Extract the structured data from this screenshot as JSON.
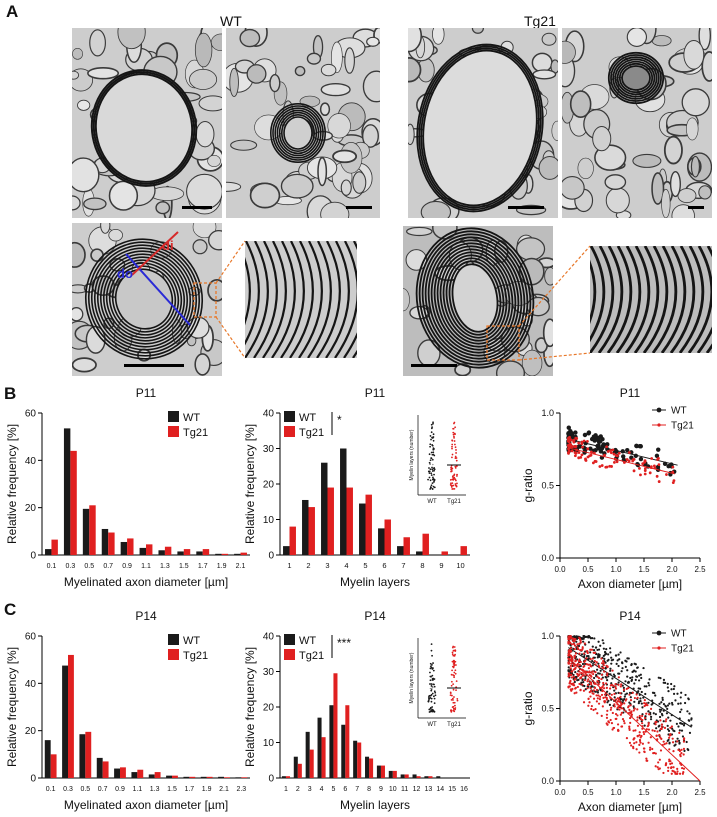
{
  "panel_labels": {
    "a": "A",
    "b": "B",
    "c": "C"
  },
  "group_labels": {
    "wt": "WT",
    "tg": "Tg21"
  },
  "micro_labels": {
    "di": "di",
    "do": "do"
  },
  "colors": {
    "wt": "#1a1a1a",
    "tg": "#e02020",
    "di_line": "#d62a2a",
    "do_line": "#2a2ad6",
    "zoom": "#e8782a"
  },
  "icons": [
    "em-micrograph",
    "scale-bar",
    "zoom-box"
  ],
  "chart_data": [
    {
      "id": "b1",
      "type": "bar",
      "title": "P11",
      "xlabel": "Myelinated axon diameter [µm]",
      "ylabel": "Relative frequency [%]",
      "ylim": [
        0,
        60
      ],
      "yticks": [
        0,
        20,
        40,
        60
      ],
      "categories": [
        "0.1",
        "0.3",
        "0.5",
        "0.7",
        "0.9",
        "1.1",
        "1.3",
        "1.5",
        "1.7",
        "1.9",
        "2.1"
      ],
      "series": [
        {
          "name": "WT",
          "values": [
            2.5,
            53.5,
            19.5,
            11,
            5.5,
            3,
            2,
            1.5,
            1.5,
            0.5,
            0.5
          ]
        },
        {
          "name": "Tg21",
          "values": [
            6.5,
            44,
            21,
            9.5,
            7,
            4.5,
            3.5,
            2.5,
            2.5,
            0.5,
            1
          ]
        }
      ],
      "legend": "top-right"
    },
    {
      "id": "b2",
      "type": "bar",
      "title": "P11",
      "xlabel": "Myelin layers",
      "ylabel": "Relative frequency [%]",
      "ylim": [
        0,
        40
      ],
      "yticks": [
        0,
        10,
        20,
        30,
        40
      ],
      "categories": [
        "1",
        "2",
        "3",
        "4",
        "5",
        "6",
        "7",
        "8",
        "9",
        "10"
      ],
      "series": [
        {
          "name": "WT",
          "values": [
            2.5,
            15.5,
            26,
            30,
            14.5,
            7.5,
            2.5,
            1,
            0,
            0
          ]
        },
        {
          "name": "Tg21",
          "values": [
            8,
            13.5,
            19,
            19,
            17,
            10,
            5,
            6,
            1,
            2.5
          ]
        }
      ],
      "legend": "top-left",
      "significance": "*",
      "inset": {
        "ylabel": "Myelin layers (number)",
        "categories": [
          "WT",
          "Tg21"
        ]
      }
    },
    {
      "id": "b3",
      "type": "scatter",
      "title": "P11",
      "xlabel": "Axon diameter [µm]",
      "ylabel": "g-ratio",
      "xlim": [
        0,
        2.5
      ],
      "ylim": [
        0,
        1.0
      ],
      "xticks": [
        "0.0",
        "0.5",
        "1.0",
        "1.5",
        "2.0",
        "2.5"
      ],
      "yticks": [
        "0.0",
        "0.5",
        "1.0"
      ],
      "series": [
        {
          "name": "WT",
          "fit": [
            [
              0.15,
              0.82
            ],
            [
              2.1,
              0.64
            ]
          ]
        },
        {
          "name": "Tg21",
          "fit": [
            [
              0.15,
              0.76
            ],
            [
              2.05,
              0.58
            ]
          ]
        }
      ],
      "legend": "top-right"
    },
    {
      "id": "c1",
      "type": "bar",
      "title": "P14",
      "xlabel": "Myelinated axon diameter [µm]",
      "ylabel": "Relative frequency [%]",
      "ylim": [
        0,
        60
      ],
      "yticks": [
        0,
        20,
        40,
        60
      ],
      "categories": [
        "0.1",
        "0.3",
        "0.5",
        "0.7",
        "0.9",
        "1.1",
        "1.3",
        "1.5",
        "1.7",
        "1.9",
        "2.1",
        "2.3"
      ],
      "series": [
        {
          "name": "WT",
          "values": [
            16,
            47.5,
            18.5,
            8.5,
            4,
            2.5,
            1.5,
            1,
            0.5,
            0.5,
            0.5,
            0.3
          ]
        },
        {
          "name": "Tg21",
          "values": [
            10,
            52,
            19.5,
            7,
            4.5,
            3.5,
            2.5,
            1,
            0.5,
            0.5,
            0.3,
            0.3
          ]
        }
      ],
      "legend": "top-right"
    },
    {
      "id": "c2",
      "type": "bar",
      "title": "P14",
      "xlabel": "Myelin layers",
      "ylabel": "Relative frequency [%]",
      "ylim": [
        0,
        40
      ],
      "yticks": [
        0,
        10,
        20,
        30,
        40
      ],
      "categories": [
        "1",
        "2",
        "3",
        "4",
        "5",
        "6",
        "7",
        "8",
        "9",
        "10",
        "11",
        "12",
        "13",
        "14",
        "15",
        "16"
      ],
      "series": [
        {
          "name": "WT",
          "values": [
            0.5,
            6,
            13,
            17,
            20.5,
            15,
            10.5,
            6,
            3.5,
            2,
            1,
            1,
            0.5,
            0.5,
            0,
            0
          ]
        },
        {
          "name": "Tg21",
          "values": [
            0.5,
            4,
            8,
            11.5,
            29.5,
            20.5,
            10,
            5.5,
            3.5,
            2,
            1,
            0.5,
            0.5,
            0,
            0,
            0
          ]
        }
      ],
      "legend": "top-left",
      "significance": "***",
      "inset": {
        "ylabel": "Myelin layers (number)",
        "categories": [
          "WT",
          "Tg21"
        ]
      }
    },
    {
      "id": "c3",
      "type": "scatter",
      "title": "P14",
      "xlabel": "Axon diameter [µm]",
      "ylabel": "g-ratio",
      "xlim": [
        0,
        2.5
      ],
      "ylim": [
        0,
        1.0
      ],
      "xticks": [
        "0.0",
        "0.5",
        "1.0",
        "1.5",
        "2.0",
        "2.5"
      ],
      "yticks": [
        "0.0",
        "0.5",
        "1.0"
      ],
      "series": [
        {
          "name": "WT",
          "fit": [
            [
              0.15,
              0.92
            ],
            [
              2.35,
              0.37
            ]
          ]
        },
        {
          "name": "Tg21",
          "fit": [
            [
              0.15,
              0.85
            ],
            [
              2.5,
              0.0
            ]
          ]
        }
      ],
      "legend": "top-right"
    }
  ]
}
